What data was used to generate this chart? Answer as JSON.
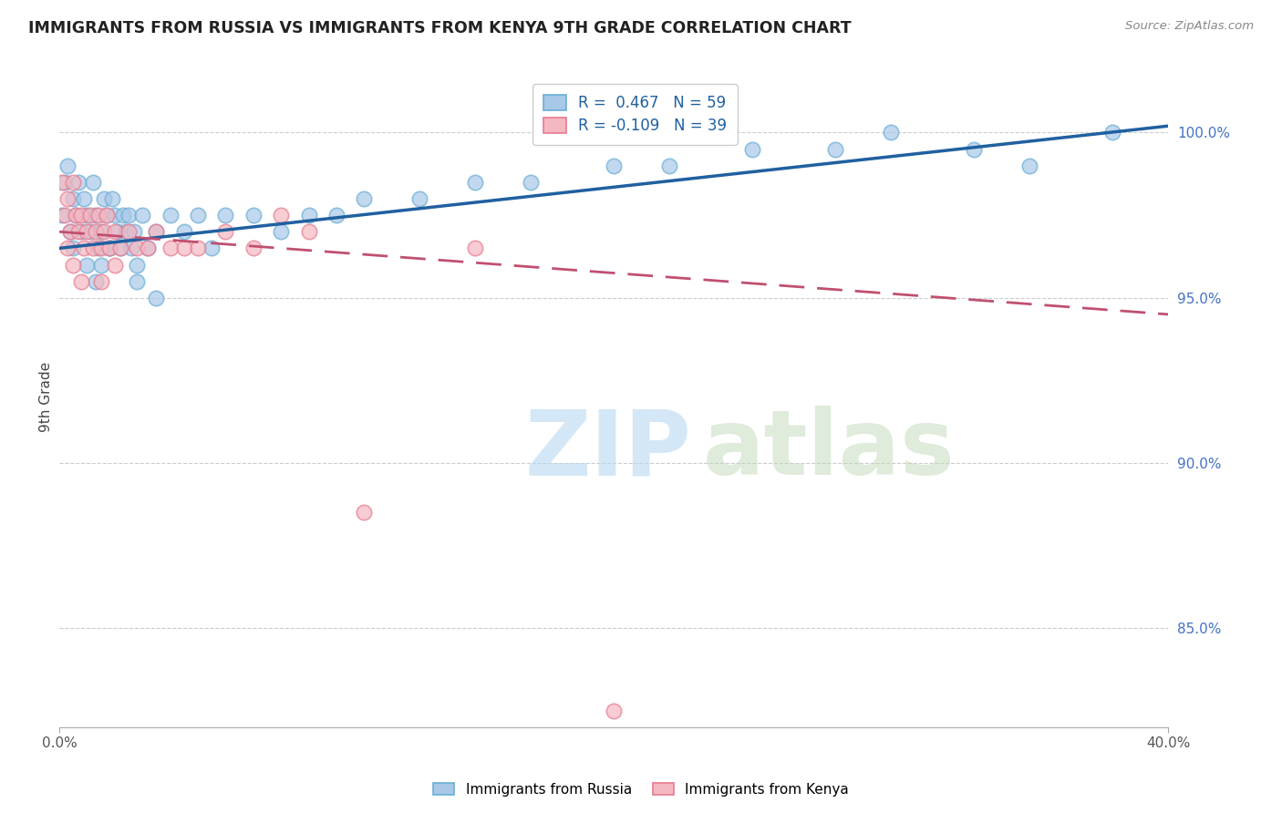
{
  "title": "IMMIGRANTS FROM RUSSIA VS IMMIGRANTS FROM KENYA 9TH GRADE CORRELATION CHART",
  "source": "Source: ZipAtlas.com",
  "ylabel": "9th Grade",
  "legend_russia": "Immigrants from Russia",
  "legend_kenya": "Immigrants from Kenya",
  "R_russia": 0.467,
  "N_russia": 59,
  "R_kenya": -0.109,
  "N_kenya": 39,
  "blue_color": "#a8c8e8",
  "blue_edge_color": "#6aaed6",
  "pink_color": "#f4b8c1",
  "pink_edge_color": "#e87a90",
  "blue_line_color": "#2060a0",
  "pink_line_color": "#c05070",
  "xlim": [
    0,
    40
  ],
  "ylim": [
    82,
    102
  ],
  "yticks": [
    85.0,
    90.0,
    95.0,
    100.0
  ],
  "ytick_labels": [
    "85.0%",
    "90.0%",
    "95.0%",
    "100.0%"
  ],
  "russia_x": [
    0.1,
    0.2,
    0.3,
    0.4,
    0.5,
    0.5,
    0.6,
    0.7,
    0.8,
    0.9,
    1.0,
    1.0,
    1.1,
    1.2,
    1.3,
    1.4,
    1.5,
    1.6,
    1.7,
    1.8,
    1.9,
    2.0,
    2.1,
    2.2,
    2.3,
    2.4,
    2.5,
    2.6,
    2.7,
    2.8,
    3.0,
    3.2,
    3.5,
    4.0,
    4.5,
    5.0,
    5.5,
    6.0,
    7.0,
    8.0,
    9.0,
    10.0,
    11.0,
    13.0,
    15.0,
    17.0,
    20.0,
    22.0,
    25.0,
    28.0,
    30.0,
    33.0,
    35.0,
    38.0,
    1.5,
    2.8,
    1.3,
    1.8,
    3.5
  ],
  "russia_y": [
    97.5,
    98.5,
    99.0,
    97.0,
    98.0,
    96.5,
    97.5,
    98.5,
    97.0,
    98.0,
    97.5,
    96.0,
    97.0,
    98.5,
    97.5,
    96.5,
    97.0,
    98.0,
    97.5,
    96.5,
    98.0,
    97.5,
    97.0,
    96.5,
    97.5,
    97.0,
    97.5,
    96.5,
    97.0,
    96.0,
    97.5,
    96.5,
    97.0,
    97.5,
    97.0,
    97.5,
    96.5,
    97.5,
    97.5,
    97.0,
    97.5,
    97.5,
    98.0,
    98.0,
    98.5,
    98.5,
    99.0,
    99.0,
    99.5,
    99.5,
    100.0,
    99.5,
    99.0,
    100.0,
    96.0,
    95.5,
    95.5,
    96.5,
    95.0
  ],
  "kenya_x": [
    0.1,
    0.2,
    0.3,
    0.4,
    0.5,
    0.6,
    0.7,
    0.8,
    0.9,
    1.0,
    1.1,
    1.2,
    1.3,
    1.4,
    1.5,
    1.6,
    1.7,
    1.8,
    2.0,
    2.2,
    2.5,
    2.8,
    3.2,
    3.5,
    4.0,
    4.5,
    5.0,
    6.0,
    7.0,
    8.0,
    9.0,
    11.0,
    15.0,
    20.0,
    0.5,
    1.5,
    2.0,
    0.8,
    0.3
  ],
  "kenya_y": [
    98.5,
    97.5,
    98.0,
    97.0,
    98.5,
    97.5,
    97.0,
    97.5,
    96.5,
    97.0,
    97.5,
    96.5,
    97.0,
    97.5,
    96.5,
    97.0,
    97.5,
    96.5,
    97.0,
    96.5,
    97.0,
    96.5,
    96.5,
    97.0,
    96.5,
    96.5,
    96.5,
    97.0,
    96.5,
    97.5,
    97.0,
    88.5,
    96.5,
    82.5,
    96.0,
    95.5,
    96.0,
    95.5,
    96.5
  ]
}
